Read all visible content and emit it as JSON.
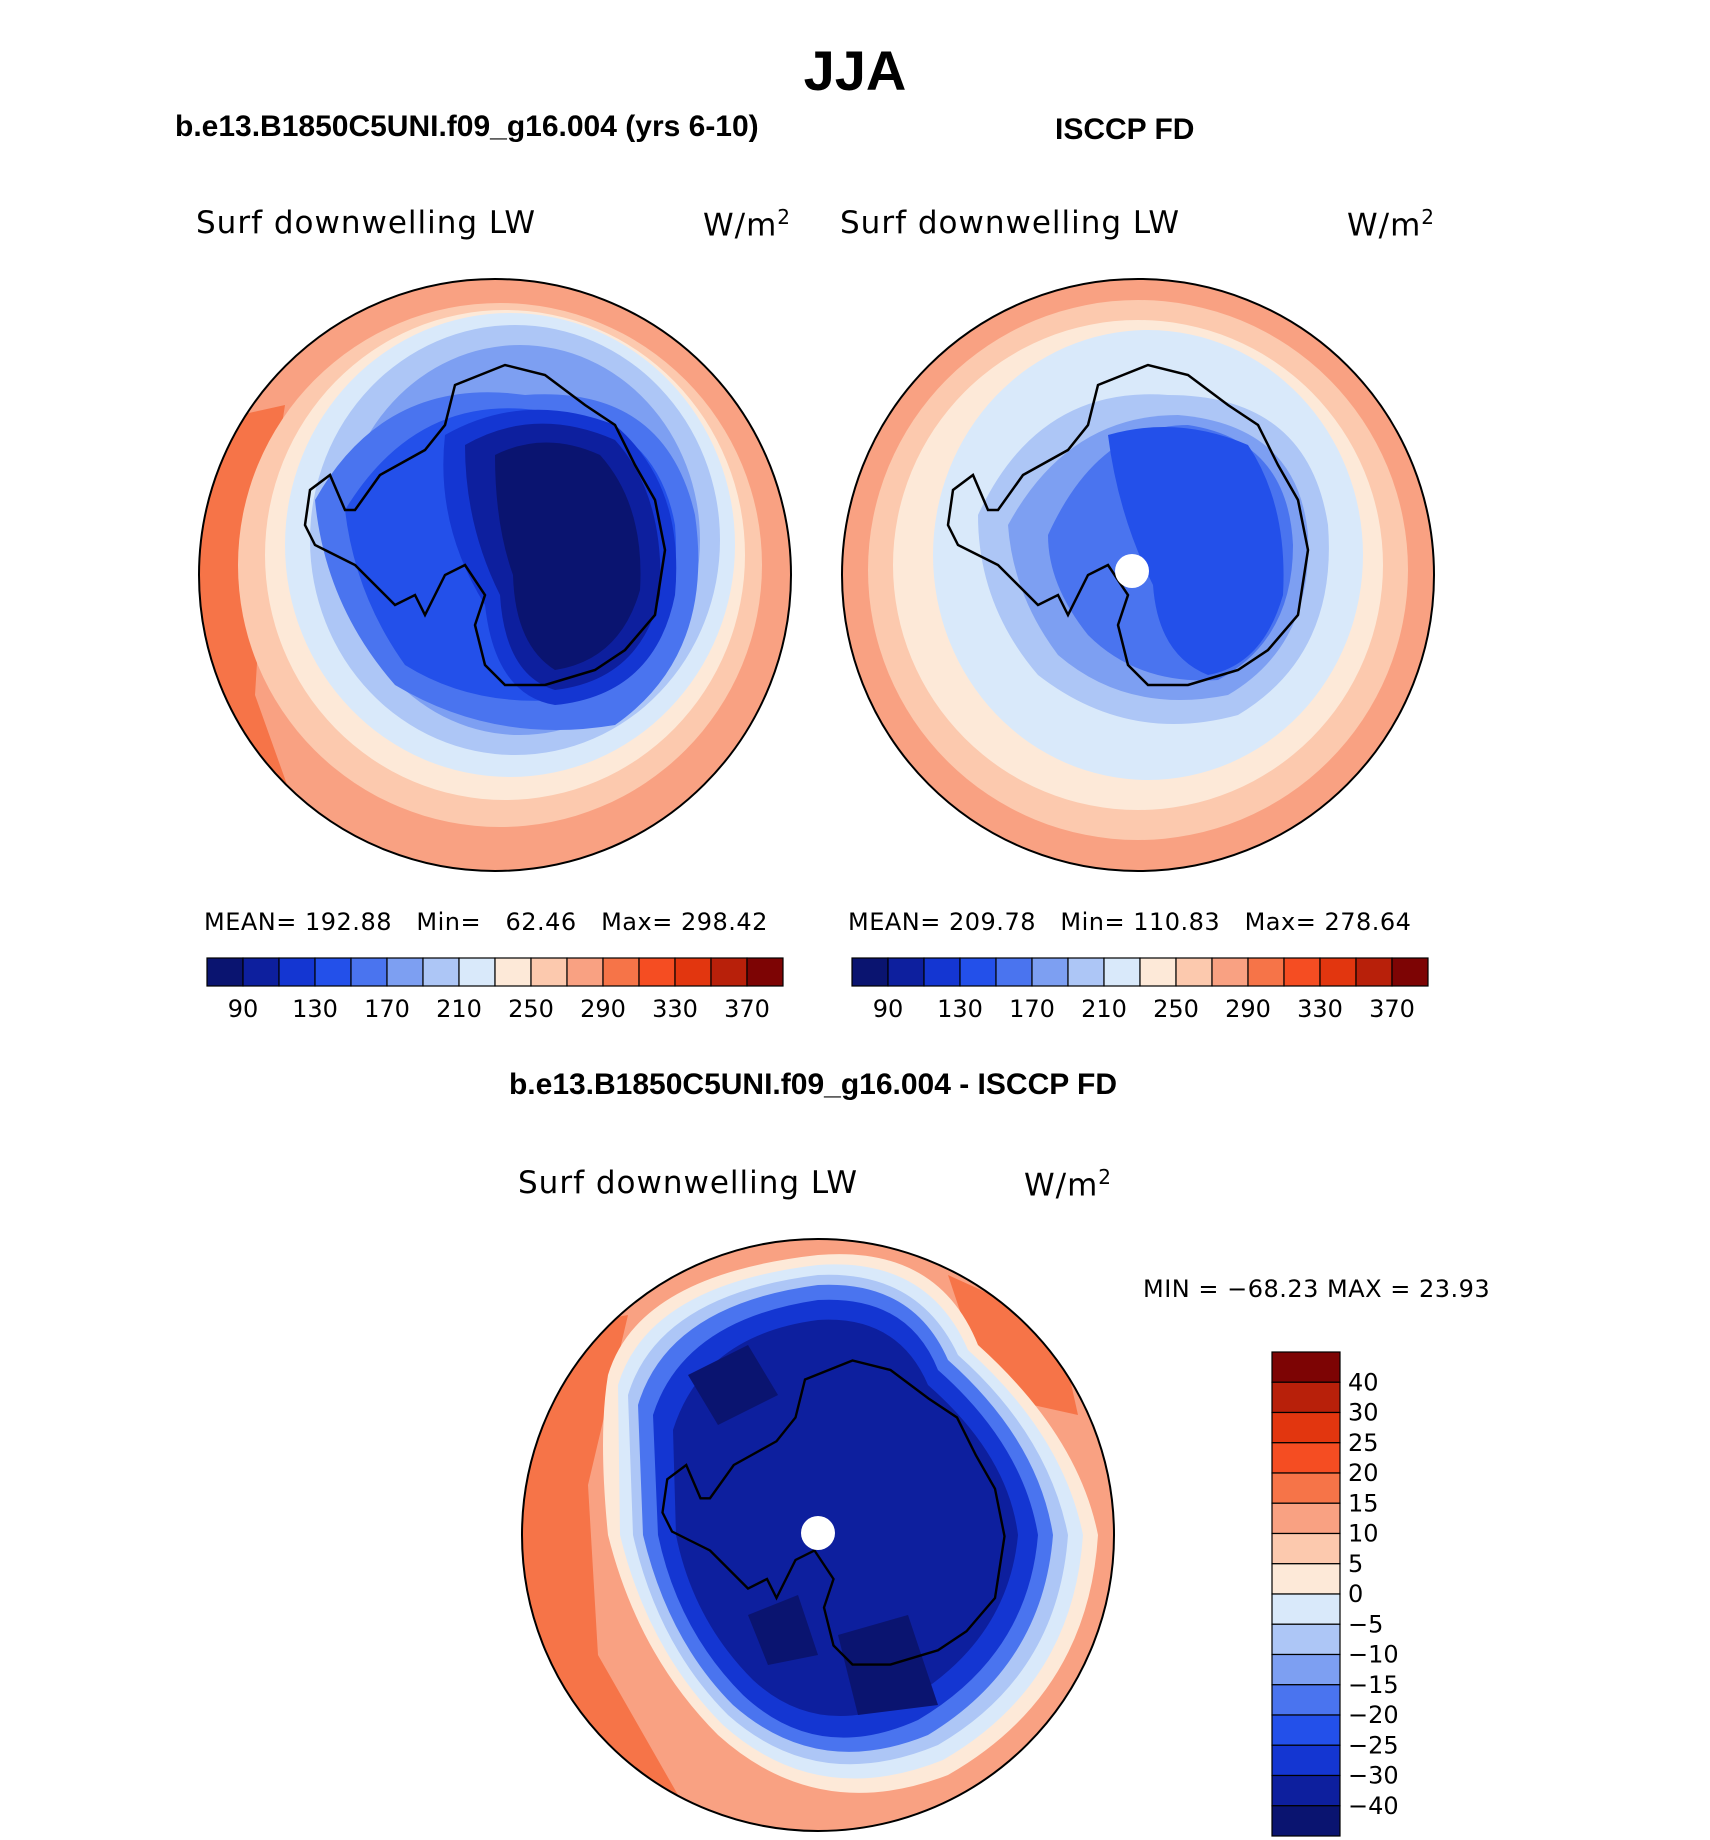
{
  "figure": {
    "season": "JJA",
    "panels": [
      {
        "title": "b.e13.B1850C5UNI.f09_g16.004 (yrs 6-10)",
        "variable": "Surf  downwelling  LW",
        "units_base": "W/m",
        "units_exp": "2",
        "stats": {
          "mean_label": "MEAN=",
          "mean": "192.88",
          "min_label": "Min=",
          "min": "62.46",
          "max_label": "Max=",
          "max": "298.42"
        }
      },
      {
        "title": "ISCCP FD",
        "variable": "Surf  downwelling  LW",
        "units_base": "W/m",
        "units_exp": "2",
        "stats": {
          "mean_label": "MEAN=",
          "mean": "209.78",
          "min_label": "Min=",
          "min": "110.83",
          "max_label": "Max=",
          "max": "278.64"
        }
      },
      {
        "title": "b.e13.B1850C5UNI.f09_g16.004 - ISCCP FD",
        "variable": "Surf  downwelling  LW",
        "units_base": "W/m",
        "units_exp": "2",
        "stats_text": "MIN = −68.23 MAX =   23.93"
      }
    ],
    "colorbar_top": {
      "labels": [
        "90",
        "130",
        "170",
        "210",
        "250",
        "290",
        "330",
        "370"
      ],
      "colors": [
        "#0a1470",
        "#0d1f9e",
        "#1436d2",
        "#2350ea",
        "#4a74ef",
        "#7d9ff2",
        "#adc6f6",
        "#d9e9fa",
        "#fde9d8",
        "#fcc9ae",
        "#f9a182",
        "#f67448",
        "#f54d22",
        "#e2360f",
        "#b8200a",
        "#7d0404"
      ]
    },
    "colorbar_diff": {
      "labels": [
        "40",
        "30",
        "25",
        "20",
        "15",
        "10",
        "5",
        "0",
        "−5",
        "−10",
        "−15",
        "−20",
        "−25",
        "−30",
        "−40"
      ],
      "colors": [
        "#7d0404",
        "#b8200a",
        "#e2360f",
        "#f54d22",
        "#f67448",
        "#f9a182",
        "#fcc9ae",
        "#fde9d8",
        "#d9e9fa",
        "#adc6f6",
        "#7d9ff2",
        "#4a74ef",
        "#2350ea",
        "#1436d2",
        "#0d1f9e",
        "#0a1470"
      ]
    }
  }
}
